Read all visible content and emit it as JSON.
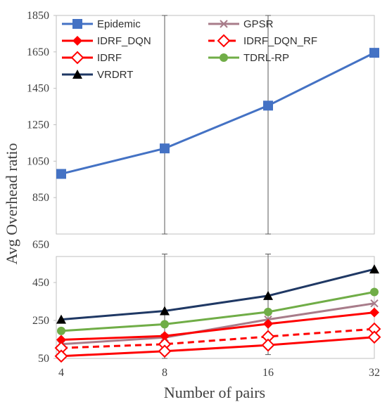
{
  "chart_data": {
    "type": "line",
    "title": "",
    "xlabel": "Number of pairs",
    "ylabel": "Avg Overhead ratio",
    "categories": [
      "4",
      "8",
      "16",
      "32"
    ],
    "y_ticks": [
      "50",
      "250",
      "450",
      "650",
      "850",
      "1050",
      "1250",
      "1450",
      "1650",
      "1850"
    ],
    "axis_break": true,
    "grid": false,
    "legend_position": "top, two columns",
    "series": [
      {
        "name": "Epidemic",
        "color": "#4472C4",
        "marker": "square",
        "dashed": false,
        "panel": "upper",
        "values": [
          980,
          1120,
          1355,
          1645
        ],
        "error": [
          0,
          730,
          730,
          0
        ]
      },
      {
        "name": "GPSR",
        "color": "#A87C8A",
        "marker": "x",
        "dashed": false,
        "panel": "lower",
        "values": [
          125,
          160,
          255,
          340
        ],
        "error": [
          0,
          0,
          0,
          0
        ]
      },
      {
        "name": "IDRF_DQN",
        "color": "#FF0000",
        "marker": "diamond",
        "dashed": false,
        "panel": "lower",
        "values": [
          148,
          168,
          232,
          292
        ],
        "error": [
          0,
          0,
          0,
          0
        ]
      },
      {
        "name": "IDRF_DQN_RF",
        "color": "#FF0000",
        "marker": "diamond-open",
        "dashed": true,
        "panel": "lower",
        "values": [
          105,
          125,
          165,
          205
        ],
        "error": [
          0,
          0,
          0,
          0
        ]
      },
      {
        "name": "IDRF",
        "color": "#FF0000",
        "marker": "diamond-open",
        "dashed": false,
        "panel": "lower",
        "values": [
          62,
          88,
          120,
          162
        ],
        "error": [
          0,
          0,
          0,
          0
        ]
      },
      {
        "name": "TDRL-RP",
        "color": "#70AD47",
        "marker": "circle",
        "dashed": false,
        "panel": "lower",
        "values": [
          195,
          230,
          295,
          400
        ],
        "error": [
          0,
          0,
          0,
          0
        ]
      },
      {
        "name": "VRDRT",
        "color": "#1F3864",
        "marker": "triangle",
        "dashed": false,
        "panel": "lower",
        "values": [
          255,
          300,
          380,
          520
        ],
        "error": [
          0,
          300,
          310,
          0
        ]
      }
    ]
  }
}
